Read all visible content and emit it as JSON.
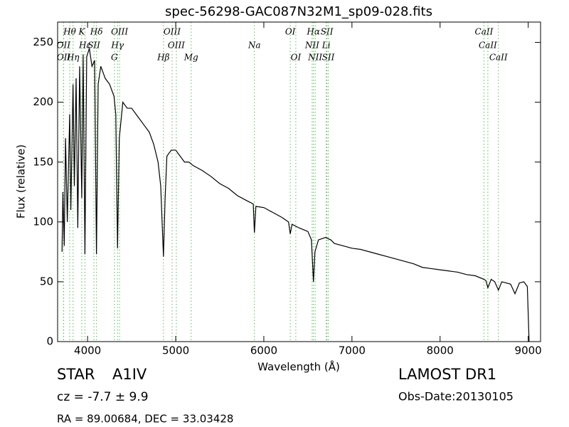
{
  "chart_data": {
    "type": "line",
    "title": "spec-56298-GAC087N32M1_sp09-028.fits",
    "x_label": "Wavelength (Å)",
    "y_label": "Flux (relative)",
    "xlim": [
      3660,
      9140
    ],
    "ylim": [
      0,
      267
    ],
    "xticks": [
      4000,
      5000,
      6000,
      7000,
      8000,
      9000
    ],
    "yticks": [
      0,
      50,
      100,
      150,
      200,
      250
    ],
    "color": "#000000",
    "line_marker_color": "#5cb85c",
    "x": [
      3710,
      3720,
      3735,
      3750,
      3770,
      3797,
      3810,
      3835,
      3850,
      3870,
      3889,
      3910,
      3934,
      3950,
      3970,
      3990,
      4020,
      4050,
      4080,
      4101,
      4120,
      4150,
      4200,
      4250,
      4300,
      4320,
      4340,
      4360,
      4400,
      4450,
      4500,
      4550,
      4600,
      4650,
      4700,
      4750,
      4800,
      4830,
      4861,
      4880,
      4900,
      4950,
      5000,
      5050,
      5100,
      5150,
      5200,
      5300,
      5400,
      5500,
      5600,
      5700,
      5800,
      5880,
      5893,
      5910,
      6000,
      6100,
      6200,
      6280,
      6300,
      6320,
      6400,
      6500,
      6540,
      6563,
      6580,
      6620,
      6700,
      6760,
      6800,
      6900,
      7000,
      7100,
      7200,
      7300,
      7400,
      7500,
      7600,
      7700,
      7800,
      7900,
      8000,
      8100,
      8200,
      8300,
      8400,
      8498,
      8520,
      8542,
      8580,
      8620,
      8662,
      8700,
      8750,
      8800,
      8850,
      8900,
      8950,
      8990,
      9010
    ],
    "values": [
      75,
      125,
      80,
      170,
      100,
      190,
      110,
      215,
      130,
      220,
      95,
      230,
      120,
      240,
      73,
      238,
      245,
      230,
      235,
      73,
      215,
      230,
      220,
      215,
      205,
      190,
      78,
      170,
      200,
      195,
      195,
      190,
      185,
      180,
      175,
      165,
      150,
      130,
      71,
      120,
      155,
      160,
      160,
      155,
      150,
      150,
      147,
      143,
      138,
      132,
      128,
      122,
      118,
      115,
      91,
      113,
      112,
      108,
      104,
      100,
      90,
      98,
      95,
      92,
      85,
      50,
      75,
      85,
      87,
      85,
      82,
      80,
      78,
      77,
      75,
      73,
      71,
      69,
      67,
      65,
      62,
      61,
      60,
      59,
      58,
      56,
      55,
      52,
      51,
      45,
      52,
      50,
      43,
      50,
      49,
      48,
      40,
      49,
      50,
      46,
      0
    ],
    "lines": [
      {
        "label": "Hθ",
        "wavelength": 3797
      },
      {
        "label": "K",
        "wavelength": 3934
      },
      {
        "label": "Hδ",
        "wavelength": 4101
      },
      {
        "label": "OIII",
        "wavelength": 4363
      },
      {
        "label": "OIII",
        "wavelength": 4959
      },
      {
        "label": "OI",
        "wavelength": 6300
      },
      {
        "label": "Hα",
        "wavelength": 6563
      },
      {
        "label": "SII",
        "wavelength": 6716
      },
      {
        "label": "CaII",
        "wavelength": 8498
      },
      {
        "label": "OII",
        "wavelength": 3727
      },
      {
        "label": "Hε",
        "wavelength": 3970
      },
      {
        "label": "SII",
        "wavelength": 4072
      },
      {
        "label": "Hγ",
        "wavelength": 4340
      },
      {
        "label": "OIII",
        "wavelength": 5007
      },
      {
        "label": "Na",
        "wavelength": 5893
      },
      {
        "label": "NII",
        "wavelength": 6548
      },
      {
        "label": "Li",
        "wavelength": 6708
      },
      {
        "label": "CaII",
        "wavelength": 8542
      },
      {
        "label": "Hη",
        "wavelength": 3835
      },
      {
        "label": "G",
        "wavelength": 4304
      },
      {
        "label": "Hβ",
        "wavelength": 4861
      },
      {
        "label": "Mg",
        "wavelength": 5175
      },
      {
        "label": "OI",
        "wavelength": 6363
      },
      {
        "label": "NII",
        "wavelength": 6583
      },
      {
        "label": "SII",
        "wavelength": 6731
      },
      {
        "label": "CaII",
        "wavelength": 8662
      },
      {
        "label": "OII",
        "wavelength": 3729
      }
    ],
    "object_class": "STAR",
    "subclass": "A1IV",
    "survey": "LAMOST DR1",
    "redshift": "cz = -7.7 ± 9.9",
    "obs_date": "Obs-Date:20130105",
    "coordinates": "RA = 89.00684, DEC = 33.03428"
  }
}
